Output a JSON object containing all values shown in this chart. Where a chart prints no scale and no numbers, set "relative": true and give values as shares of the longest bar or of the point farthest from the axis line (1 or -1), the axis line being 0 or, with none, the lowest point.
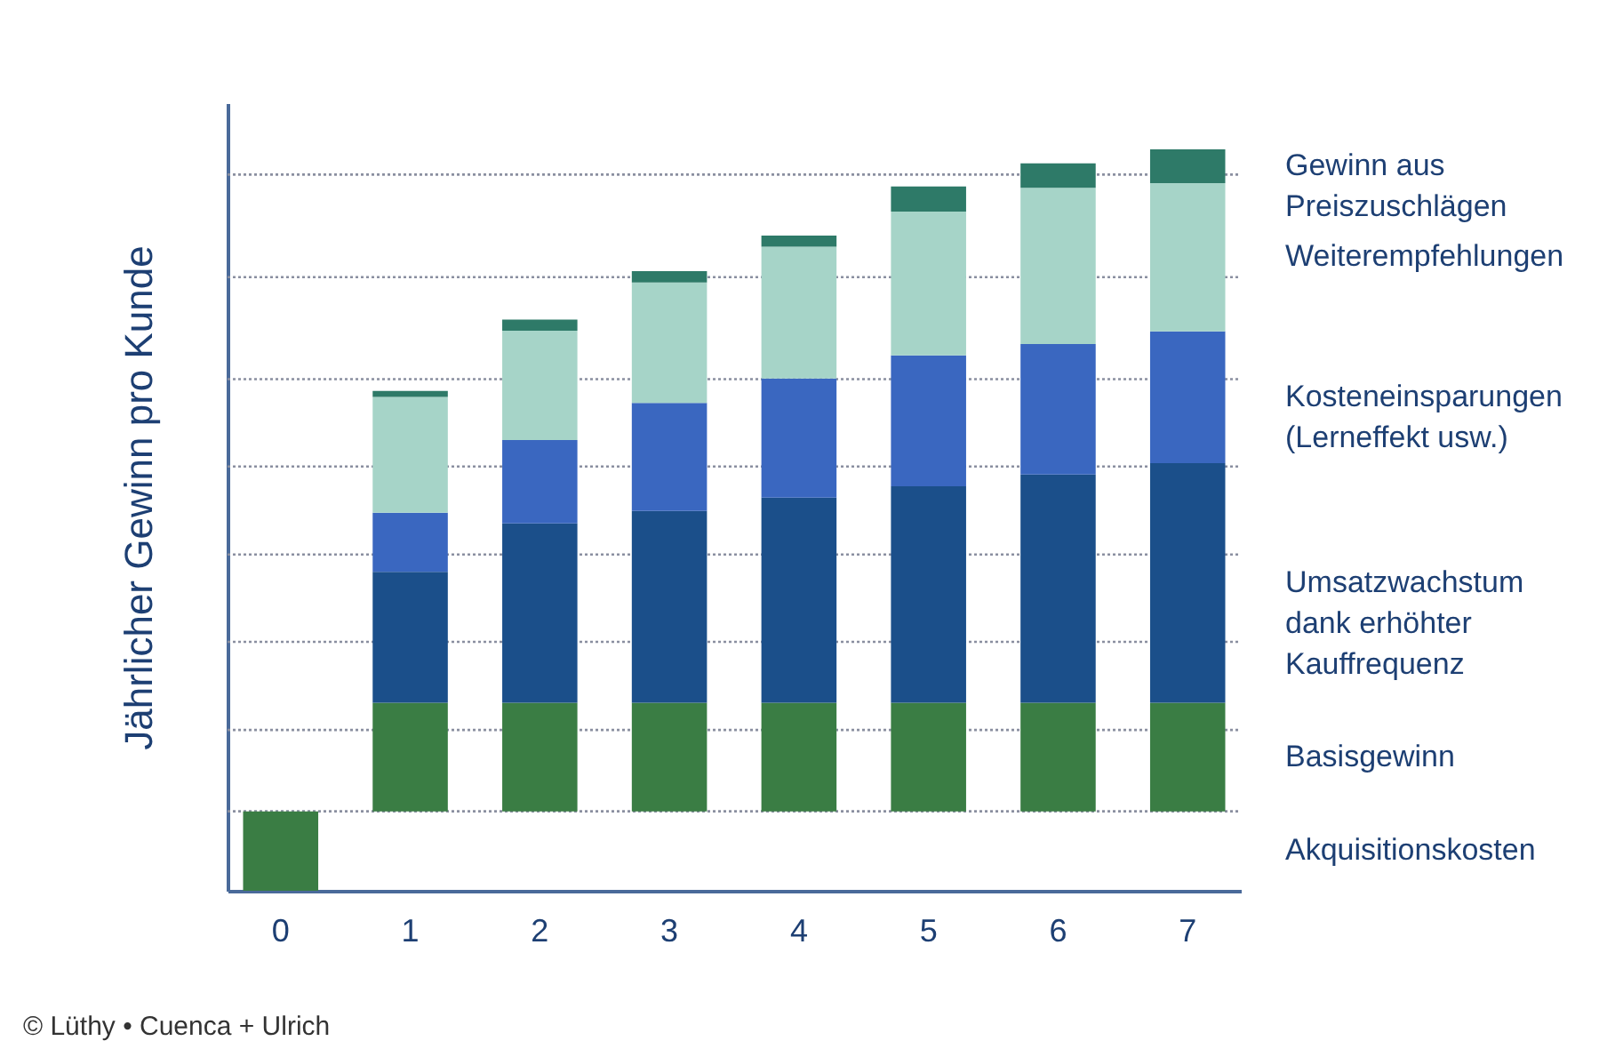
{
  "chart_data": {
    "type": "bar",
    "stacked": true,
    "relative": true,
    "legend": "right",
    "ylabel": "Jährlicher Gewinn pro Kunde",
    "categories": [
      "0",
      "1",
      "2",
      "3",
      "4",
      "5",
      "6",
      "7"
    ],
    "series": [
      {
        "name": "Akquisitionskosten",
        "color": "#3a7d44",
        "values": [
          -0.12,
          null,
          null,
          null,
          null,
          null,
          null,
          null
        ]
      },
      {
        "name": "Basisgewinn",
        "color": "#3a7d44",
        "values": [
          null,
          0.164,
          0.164,
          0.164,
          0.164,
          0.164,
          0.164,
          0.164
        ]
      },
      {
        "name": "Umsatzwachstum\ndank erhöhter\nKauffrequenz",
        "color": "#1b4f8a",
        "values": [
          null,
          0.198,
          0.271,
          0.29,
          0.31,
          0.327,
          0.345,
          0.362
        ]
      },
      {
        "name": "Kosteneinsparungen\n(Lerneffekt usw.)",
        "color": "#3a67c0",
        "values": [
          null,
          0.089,
          0.126,
          0.163,
          0.18,
          0.198,
          0.197,
          0.199
        ]
      },
      {
        "name": "Weiterempfehlungen",
        "color": "#a6d4c8",
        "values": [
          null,
          0.175,
          0.165,
          0.182,
          0.199,
          0.217,
          0.236,
          0.224
        ]
      },
      {
        "name": "Gewinn aus\nPreiszuschlägen",
        "color": "#2e7a68",
        "values": [
          null,
          0.009,
          0.017,
          0.017,
          0.017,
          0.038,
          0.037,
          0.051
        ]
      }
    ],
    "ref_lines": [
      {
        "axis": "y",
        "value": 0,
        "color": "#8a8fa0",
        "line_style": "dotted"
      },
      {
        "axis": "y",
        "value": 0.123,
        "color": "#8a8fa0",
        "line_style": "dotted"
      },
      {
        "axis": "y",
        "value": 0.256,
        "color": "#8a8fa0",
        "line_style": "dotted"
      },
      {
        "axis": "y",
        "value": 0.388,
        "color": "#8a8fa0",
        "line_style": "dotted"
      },
      {
        "axis": "y",
        "value": 0.521,
        "color": "#8a8fa0",
        "line_style": "dotted"
      },
      {
        "axis": "y",
        "value": 0.653,
        "color": "#8a8fa0",
        "line_style": "dotted"
      },
      {
        "axis": "y",
        "value": 0.807,
        "color": "#8a8fa0",
        "line_style": "dotted"
      },
      {
        "axis": "y",
        "value": 0.962,
        "color": "#8a8fa0",
        "line_style": "dotted"
      }
    ],
    "annotations": [
      "© Lüthy • Cuenca + Ulrich"
    ]
  }
}
